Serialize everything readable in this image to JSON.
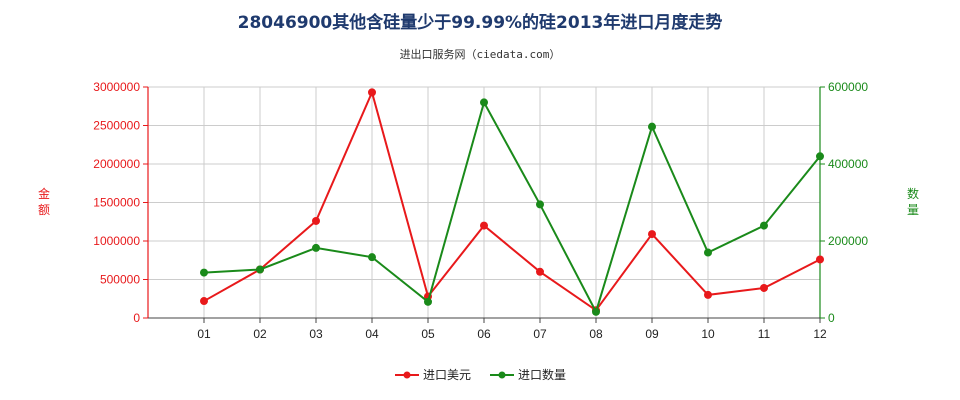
{
  "title": "28046900其他含硅量少于99.99%的硅2013年进口月度走势",
  "subtitle": "进出口服务网（ciedata.com）",
  "chart_data": {
    "type": "line",
    "categories": [
      "01",
      "02",
      "03",
      "04",
      "05",
      "06",
      "07",
      "08",
      "09",
      "10",
      "11",
      "12"
    ],
    "series": [
      {
        "name": "进口美元",
        "axis": "left",
        "color": "#e8191b",
        "values": [
          220000,
          630000,
          1260000,
          2930000,
          280000,
          1200000,
          600000,
          100000,
          1090000,
          300000,
          390000,
          760000
        ]
      },
      {
        "name": "进口数量",
        "axis": "right",
        "color": "#1a8a1a",
        "values": [
          118000,
          126000,
          182000,
          158000,
          42000,
          560000,
          295000,
          16000,
          497000,
          170000,
          240000,
          420000
        ]
      }
    ],
    "left_axis": {
      "label": "金额",
      "ylim": [
        0,
        3000000
      ],
      "ticks": [
        "0",
        "500000",
        "1000000",
        "1500000",
        "2000000",
        "2500000",
        "3000000"
      ],
      "color": "#e8191b"
    },
    "right_axis": {
      "label": "数量",
      "ylim": [
        0,
        600000
      ],
      "ticks": [
        "0",
        "200000",
        "400000",
        "600000"
      ],
      "color": "#1a8a1a"
    },
    "grid": true,
    "legend_position": "bottom"
  }
}
